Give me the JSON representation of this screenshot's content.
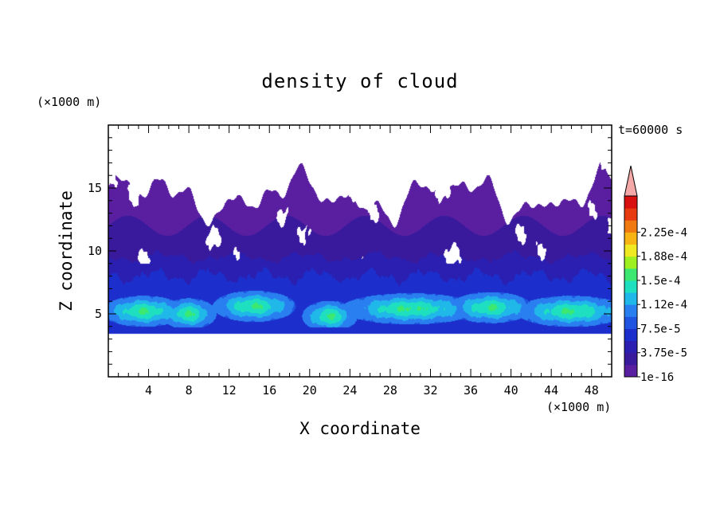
{
  "chart_data": {
    "type": "heatmap",
    "title": "density of cloud",
    "xlabel": "X coordinate",
    "ylabel": "Z coordinate",
    "x_unit": "(×1000 m)",
    "y_unit": "(×1000 m)",
    "time_label": "t=60000 s",
    "xlim": [
      0,
      50
    ],
    "ylim": [
      0,
      20
    ],
    "x_ticks": [
      4,
      8,
      12,
      16,
      20,
      24,
      28,
      32,
      36,
      40,
      44,
      48
    ],
    "y_ticks": [
      5,
      10,
      15
    ],
    "colorbar": {
      "labels": [
        "1e-16",
        "3.75e-5",
        "7.5e-5",
        "1.12e-4",
        "1.5e-4",
        "1.88e-4",
        "2.25e-4"
      ],
      "levels": [
        1e-16,
        1.875e-05,
        3.75e-05,
        5.625e-05,
        7.5e-05,
        9.375e-05,
        0.0001125,
        0.00013125,
        0.00015,
        0.00016875,
        0.0001875,
        0.00020625,
        0.000225,
        0.00024375
      ],
      "colors": [
        "#5a1fa0",
        "#3a1a9c",
        "#2a1fb0",
        "#1c2fcc",
        "#1f55e0",
        "#2a7ff0",
        "#20b8e8",
        "#1ee0c0",
        "#3ce870",
        "#9ef020",
        "#f0e820",
        "#f8b414",
        "#f07a10",
        "#e83a10",
        "#d81010"
      ],
      "overflow_color": "#f4a8a8",
      "extend": "max"
    },
    "regions": [
      {
        "description": "cloud",
        "z_range": [
          3.5,
          17
        ],
        "dominant_value": "1e-16 to 1.9e-5"
      },
      {
        "description": "dense lower layer",
        "z_range": [
          3.5,
          9.5
        ],
        "max_value": "about 1.5e-4"
      }
    ]
  }
}
